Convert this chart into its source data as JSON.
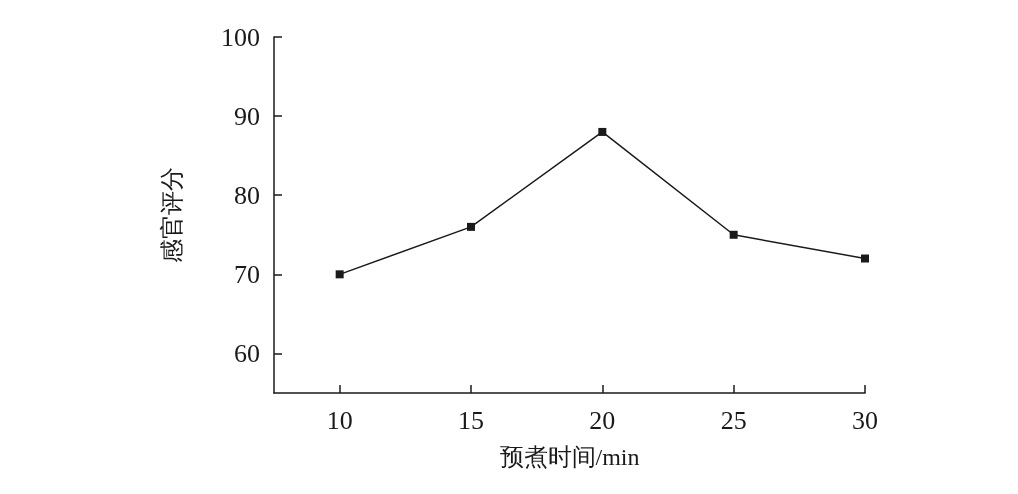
{
  "chart_data": {
    "type": "line",
    "xlabel": "预煮时间/min",
    "ylabel": "感官评分",
    "x": [
      10,
      15,
      20,
      25,
      30
    ],
    "series": [
      {
        "color": "#1a1a1a",
        "values": [
          70,
          76,
          88,
          75,
          72
        ]
      }
    ],
    "xlim": [
      7.5,
      30
    ],
    "xticks": [
      10,
      15,
      20,
      25,
      30
    ],
    "ylim": [
      55,
      100
    ],
    "yticks": [
      60,
      70,
      80,
      90,
      100
    ],
    "grid": false,
    "marker": "square",
    "line_style": "solid"
  }
}
